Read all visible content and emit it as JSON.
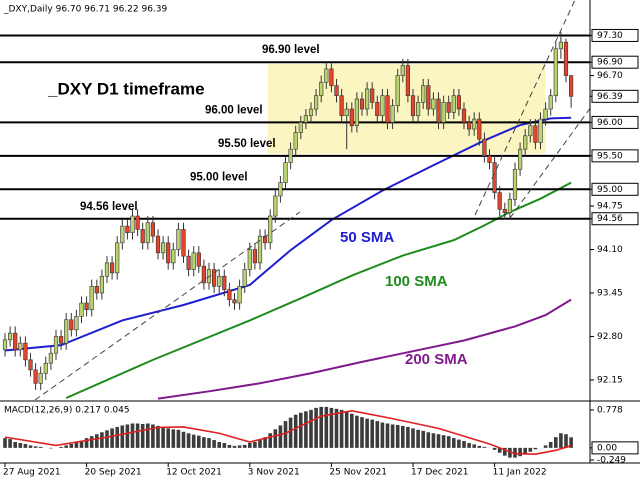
{
  "chart_data": [
    {
      "type": "candlestick",
      "title": "_DXY,Daily  96.70 96.71 96.22 96.39",
      "annotation": "_DXY D1 timeframe",
      "categories": [
        "27 Aug 2021",
        null,
        null,
        null,
        null,
        null,
        null,
        null,
        null,
        null,
        null,
        null,
        null,
        null,
        null,
        null,
        "20 Sep 2021",
        null,
        null,
        null,
        null,
        null,
        null,
        null,
        null,
        null,
        null,
        null,
        null,
        null,
        null,
        null,
        "12 Oct 2021",
        null,
        null,
        null,
        null,
        null,
        null,
        null,
        null,
        null,
        null,
        null,
        null,
        null,
        null,
        null,
        "3 Nov 2021",
        null,
        null,
        null,
        null,
        null,
        null,
        null,
        null,
        null,
        null,
        null,
        null,
        null,
        null,
        null,
        "25 Nov 2021",
        null,
        null,
        null,
        null,
        null,
        null,
        null,
        null,
        null,
        null,
        null,
        null,
        null,
        null,
        null,
        "17 Dec 2021",
        null,
        null,
        null,
        null,
        null,
        null,
        null,
        null,
        null,
        null,
        null,
        null,
        null,
        null,
        null,
        "11 Jan 2022",
        null,
        null,
        null,
        null,
        null,
        null,
        null,
        null,
        null,
        null,
        null,
        null,
        null,
        null,
        null
      ],
      "ohlc": [
        [
          92.6,
          92.85,
          92.5,
          92.75
        ],
        [
          92.75,
          92.95,
          92.65,
          92.85
        ],
        [
          92.85,
          92.95,
          92.5,
          92.6
        ],
        [
          92.6,
          92.8,
          92.5,
          92.7
        ],
        [
          92.7,
          92.8,
          92.35,
          92.45
        ],
        [
          92.45,
          92.55,
          92.2,
          92.3
        ],
        [
          92.3,
          92.4,
          92.0,
          92.1
        ],
        [
          92.1,
          92.35,
          92.0,
          92.25
        ],
        [
          92.25,
          92.5,
          92.15,
          92.4
        ],
        [
          92.4,
          92.65,
          92.3,
          92.55
        ],
        [
          92.55,
          92.9,
          92.45,
          92.8
        ],
        [
          92.8,
          92.9,
          92.6,
          92.7
        ],
        [
          92.7,
          93.15,
          92.6,
          93.05
        ],
        [
          93.05,
          93.15,
          92.8,
          92.9
        ],
        [
          92.9,
          93.2,
          92.8,
          93.1
        ],
        [
          93.1,
          93.4,
          93.0,
          93.3
        ],
        [
          93.3,
          93.4,
          93.1,
          93.2
        ],
        [
          93.2,
          93.65,
          93.1,
          93.55
        ],
        [
          93.55,
          93.65,
          93.35,
          93.45
        ],
        [
          93.45,
          93.8,
          93.35,
          93.7
        ],
        [
          93.7,
          94.0,
          93.6,
          93.9
        ],
        [
          93.9,
          94.0,
          93.65,
          93.75
        ],
        [
          93.75,
          94.3,
          93.65,
          94.2
        ],
        [
          94.2,
          94.55,
          94.1,
          94.45
        ],
        [
          94.45,
          94.55,
          94.25,
          94.35
        ],
        [
          94.35,
          94.7,
          94.25,
          94.6
        ],
        [
          94.6,
          94.7,
          94.3,
          94.4
        ],
        [
          94.4,
          94.5,
          94.1,
          94.2
        ],
        [
          94.2,
          94.6,
          94.1,
          94.5
        ],
        [
          94.5,
          94.6,
          94.2,
          94.3
        ],
        [
          94.3,
          94.4,
          93.95,
          94.05
        ],
        [
          94.05,
          94.3,
          93.95,
          94.2
        ],
        [
          94.2,
          94.3,
          93.8,
          93.9
        ],
        [
          93.9,
          94.2,
          93.8,
          94.1
        ],
        [
          94.1,
          94.5,
          94.0,
          94.4
        ],
        [
          94.4,
          94.5,
          93.9,
          94.0
        ],
        [
          94.0,
          94.1,
          93.7,
          93.8
        ],
        [
          93.8,
          94.15,
          93.7,
          94.05
        ],
        [
          94.05,
          94.15,
          93.75,
          93.85
        ],
        [
          93.85,
          93.95,
          93.5,
          93.6
        ],
        [
          93.6,
          93.9,
          93.5,
          93.8
        ],
        [
          93.8,
          93.9,
          93.45,
          93.55
        ],
        [
          93.55,
          93.8,
          93.45,
          93.7
        ],
        [
          93.7,
          93.8,
          93.4,
          93.5
        ],
        [
          93.5,
          93.6,
          93.25,
          93.35
        ],
        [
          93.35,
          93.45,
          93.2,
          93.3
        ],
        [
          93.3,
          93.65,
          93.2,
          93.55
        ],
        [
          93.55,
          93.9,
          93.45,
          93.8
        ],
        [
          93.8,
          94.2,
          93.7,
          94.1
        ],
        [
          94.1,
          94.2,
          93.8,
          93.9
        ],
        [
          93.9,
          94.4,
          93.8,
          94.3
        ],
        [
          94.3,
          94.4,
          94.1,
          94.2
        ],
        [
          94.2,
          94.7,
          94.1,
          94.6
        ],
        [
          94.6,
          95.0,
          94.5,
          94.9
        ],
        [
          94.9,
          95.2,
          94.8,
          95.1
        ],
        [
          95.1,
          95.5,
          95.0,
          95.4
        ],
        [
          95.4,
          95.7,
          95.3,
          95.6
        ],
        [
          95.6,
          95.95,
          95.5,
          95.85
        ],
        [
          95.85,
          96.1,
          95.75,
          96.0
        ],
        [
          96.0,
          96.2,
          95.9,
          96.1
        ],
        [
          96.1,
          96.3,
          96.0,
          96.2
        ],
        [
          96.2,
          96.5,
          96.1,
          96.4
        ],
        [
          96.4,
          96.7,
          96.3,
          96.6
        ],
        [
          96.6,
          96.9,
          96.5,
          96.8
        ],
        [
          96.8,
          96.9,
          96.45,
          96.55
        ],
        [
          96.55,
          96.65,
          96.3,
          96.4
        ],
        [
          96.4,
          96.5,
          96.0,
          96.1
        ],
        [
          96.1,
          96.3,
          95.6,
          96.2
        ],
        [
          96.2,
          96.3,
          95.85,
          95.95
        ],
        [
          95.95,
          96.45,
          95.85,
          96.35
        ],
        [
          96.35,
          96.45,
          96.1,
          96.2
        ],
        [
          96.2,
          96.6,
          96.1,
          96.5
        ],
        [
          96.5,
          96.6,
          96.2,
          96.3
        ],
        [
          96.3,
          96.4,
          96.0,
          96.1
        ],
        [
          96.1,
          96.5,
          96.0,
          96.4
        ],
        [
          96.4,
          96.5,
          95.9,
          96.0
        ],
        [
          96.0,
          96.35,
          95.9,
          96.25
        ],
        [
          96.25,
          96.8,
          96.15,
          96.7
        ],
        [
          96.7,
          96.95,
          96.6,
          96.85
        ],
        [
          96.85,
          96.95,
          96.3,
          96.4
        ],
        [
          96.4,
          96.5,
          96.0,
          96.1
        ],
        [
          96.1,
          96.4,
          96.0,
          96.3
        ],
        [
          96.3,
          96.65,
          96.2,
          96.55
        ],
        [
          96.55,
          96.65,
          96.1,
          96.2
        ],
        [
          96.2,
          96.45,
          96.1,
          96.35
        ],
        [
          96.35,
          96.45,
          95.9,
          96.0
        ],
        [
          96.0,
          96.4,
          95.9,
          96.3
        ],
        [
          96.3,
          96.4,
          96.05,
          96.15
        ],
        [
          96.15,
          96.5,
          96.05,
          96.4
        ],
        [
          96.4,
          96.5,
          96.1,
          96.2
        ],
        [
          96.2,
          96.3,
          95.9,
          96.0
        ],
        [
          96.0,
          96.1,
          95.8,
          95.9
        ],
        [
          95.9,
          96.15,
          95.8,
          96.05
        ],
        [
          96.05,
          96.15,
          95.65,
          95.75
        ],
        [
          95.75,
          95.85,
          95.4,
          95.5
        ],
        [
          95.5,
          95.6,
          95.3,
          95.4
        ],
        [
          95.4,
          95.5,
          94.85,
          94.95
        ],
        [
          94.95,
          95.05,
          94.6,
          94.7
        ],
        [
          94.7,
          94.8,
          94.55,
          94.65
        ],
        [
          94.65,
          94.95,
          94.55,
          94.85
        ],
        [
          94.85,
          95.4,
          94.75,
          95.3
        ],
        [
          95.3,
          95.7,
          95.2,
          95.6
        ],
        [
          95.6,
          95.9,
          95.5,
          95.8
        ],
        [
          95.8,
          96.05,
          95.7,
          95.95
        ],
        [
          95.95,
          96.05,
          95.6,
          95.7
        ],
        [
          95.7,
          96.15,
          95.6,
          96.05
        ],
        [
          96.05,
          96.3,
          95.95,
          96.2
        ],
        [
          96.2,
          96.5,
          96.1,
          96.4
        ],
        [
          96.4,
          97.2,
          96.3,
          97.1
        ],
        [
          97.1,
          97.35,
          96.95,
          97.2
        ],
        [
          97.2,
          97.25,
          96.6,
          96.7
        ],
        [
          96.7,
          96.71,
          96.22,
          96.39
        ]
      ],
      "bull_color": "#b9d36e",
      "bear_color": "#e2452c",
      "ylim": [
        91.85,
        97.83
      ],
      "yticks": [
        {
          "value": 97.3,
          "label": "97.30"
        },
        {
          "value": 96.9,
          "label": "96.90"
        },
        {
          "value": 96.7,
          "label": "96.70"
        },
        96.39,
        {
          "value": 96,
          "label": "96.00"
        },
        {
          "value": 95.5,
          "label": "95.50"
        },
        {
          "value": 95,
          "label": "95.00"
        },
        94.75,
        94.56,
        {
          "value": 94.1,
          "label": "94.10"
        },
        93.45,
        {
          "value": 92.8,
          "label": "92.80"
        },
        92.15
      ],
      "levels": [
        {
          "value": 97.3
        },
        {
          "value": 96.9,
          "label": "96.90 level"
        },
        {
          "value": 96,
          "label": "96.00 level"
        },
        {
          "value": 95.5,
          "label": "95.50 level"
        },
        {
          "value": 95,
          "label": "95.00 level"
        },
        {
          "value": 94.56,
          "label": "94.56 level"
        }
      ],
      "zone": {
        "from": 51.5,
        "to": 106,
        "low": 95.53,
        "high": 96.87,
        "color": "#fbf5c2"
      },
      "series": [
        {
          "name": "50 SMA",
          "color": "#1f1fd0",
          "x": [
            0,
            11,
            23,
            35,
            48,
            56,
            64,
            74,
            84,
            94,
            101,
            107,
            111
          ],
          "values": [
            92.59,
            92.67,
            93.04,
            93.27,
            93.57,
            94.09,
            94.54,
            94.98,
            95.36,
            95.73,
            95.96,
            96.06,
            96.07
          ]
        },
        {
          "name": "100 SMA",
          "color": "#1e8c1e",
          "x": [
            12,
            29,
            48,
            58,
            68,
            78,
            88,
            94,
            99,
            105,
            111
          ],
          "values": [
            91.88,
            92.45,
            93.04,
            93.37,
            93.71,
            94.01,
            94.24,
            94.46,
            94.66,
            94.86,
            95.1
          ]
        },
        {
          "name": "200 SMA",
          "color": "#7f1a8c",
          "x": [
            30,
            40,
            50,
            60,
            70,
            80,
            90,
            100,
            106,
            111
          ],
          "values": [
            91.87,
            91.98,
            92.1,
            92.25,
            92.42,
            92.58,
            92.74,
            92.95,
            93.12,
            93.35
          ]
        }
      ]
    },
    {
      "type": "bar",
      "title": "MACD(12,26,9) 0.217 0.045",
      "color": "#3c3c3c",
      "values": [
        0.2,
        0.18,
        0.12,
        0.1,
        0.08,
        0.05,
        0.03,
        0.02,
        0.0,
        -0.01,
        0.0,
        0.02,
        0.05,
        0.08,
        0.12,
        0.15,
        0.2,
        0.24,
        0.28,
        0.32,
        0.36,
        0.4,
        0.43,
        0.46,
        0.48,
        0.5,
        0.5,
        0.49,
        0.5,
        0.48,
        0.45,
        0.43,
        0.4,
        0.38,
        0.37,
        0.33,
        0.3,
        0.27,
        0.25,
        0.22,
        0.2,
        0.16,
        0.12,
        0.1,
        0.06,
        0.04,
        0.05,
        0.06,
        0.1,
        0.12,
        0.18,
        0.22,
        0.3,
        0.38,
        0.46,
        0.55,
        0.62,
        0.68,
        0.72,
        0.75,
        0.78,
        0.82,
        0.84,
        0.84,
        0.82,
        0.8,
        0.78,
        0.74,
        0.7,
        0.66,
        0.63,
        0.6,
        0.58,
        0.55,
        0.52,
        0.5,
        0.48,
        0.47,
        0.45,
        0.43,
        0.4,
        0.37,
        0.35,
        0.32,
        0.3,
        0.28,
        0.26,
        0.24,
        0.2,
        0.17,
        0.14,
        0.1,
        0.07,
        0.04,
        0.02,
        0.0,
        -0.04,
        -0.1,
        -0.16,
        -0.2,
        -0.2,
        -0.17,
        -0.12,
        -0.08,
        -0.03,
        0.0,
        0.05,
        0.12,
        0.22,
        0.3,
        0.28,
        0.217
      ],
      "ylim": [
        -0.29,
        0.9
      ],
      "yticks": [
        0.778,
        {
          "value": 0,
          "label": "0.00"
        },
        -0.249
      ],
      "series": [
        {
          "color": "#e02020",
          "x": [
            0,
            10,
            20,
            30,
            35,
            42,
            48,
            55,
            62,
            68,
            75,
            85,
            95,
            100,
            104,
            108,
            111
          ],
          "values": [
            0.22,
            0.05,
            0.22,
            0.42,
            0.43,
            0.3,
            0.12,
            0.3,
            0.65,
            0.76,
            0.62,
            0.4,
            0.08,
            -0.12,
            -0.13,
            -0.05,
            0.045
          ]
        }
      ]
    }
  ]
}
